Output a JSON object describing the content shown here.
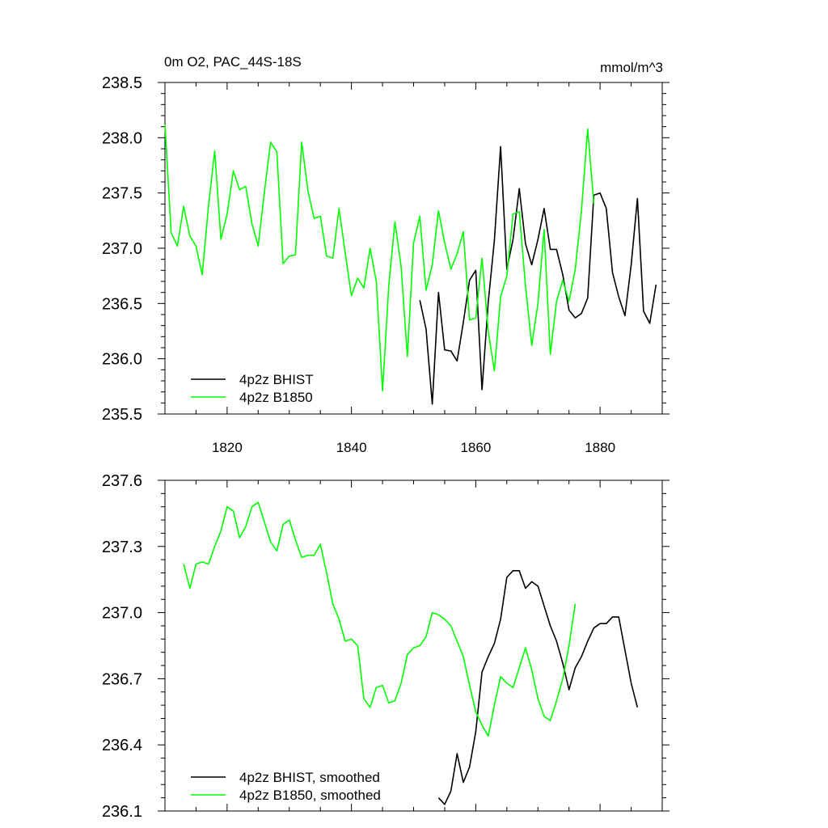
{
  "chart_data": [
    {
      "type": "line",
      "title_left": "0m O2, PAC_44S-18S",
      "title_right": "mmol/m^3",
      "xlim": [
        1810,
        1890
      ],
      "ylim": [
        235.5,
        238.5
      ],
      "x_ticks": [
        1820,
        1840,
        1860,
        1880
      ],
      "x_tick_labels": [
        "1820",
        "1840",
        "1860",
        "1880"
      ],
      "y_ticks": [
        235.5,
        236.0,
        236.5,
        237.0,
        237.5,
        238.0,
        238.5
      ],
      "y_tick_labels": [
        "235.5",
        "236.0",
        "236.5",
        "237.0",
        "237.5",
        "238.0",
        "238.5"
      ],
      "legend": [
        "4p2z BHIST",
        "4p2z B1850"
      ],
      "series": [
        {
          "name": "4p2z BHIST",
          "color": "#000000",
          "x": [
            1851,
            1852,
            1853,
            1854,
            1855,
            1856,
            1857,
            1858,
            1859,
            1860,
            1861,
            1862,
            1863,
            1864,
            1865,
            1866,
            1867,
            1868,
            1869,
            1870,
            1871,
            1872,
            1873,
            1874,
            1875,
            1876,
            1877,
            1878,
            1879,
            1880,
            1881,
            1882,
            1883,
            1884,
            1885,
            1886,
            1887,
            1888,
            1889
          ],
          "y": [
            236.53,
            236.27,
            235.59,
            236.6,
            236.08,
            236.07,
            235.98,
            236.33,
            236.71,
            236.8,
            235.72,
            236.51,
            237.07,
            237.92,
            236.81,
            237.08,
            237.54,
            237.04,
            236.85,
            237.08,
            237.36,
            236.99,
            236.99,
            236.76,
            236.44,
            236.37,
            236.41,
            236.55,
            237.48,
            237.5,
            237.36,
            236.78,
            236.56,
            236.39,
            236.85,
            237.45,
            236.43,
            236.32,
            236.67
          ]
        },
        {
          "name": "4p2z B1850",
          "color": "#00ff00",
          "x": [
            1810,
            1811,
            1812,
            1813,
            1814,
            1815,
            1816,
            1817,
            1818,
            1819,
            1820,
            1821,
            1822,
            1823,
            1824,
            1825,
            1826,
            1827,
            1828,
            1829,
            1830,
            1831,
            1832,
            1833,
            1834,
            1835,
            1836,
            1837,
            1838,
            1839,
            1840,
            1841,
            1842,
            1843,
            1844,
            1845,
            1846,
            1847,
            1848,
            1849,
            1850,
            1851,
            1852,
            1853,
            1854,
            1855,
            1856,
            1857,
            1858,
            1859,
            1860,
            1861,
            1862,
            1863,
            1864,
            1865,
            1866,
            1867,
            1868,
            1869,
            1870,
            1871,
            1872,
            1873,
            1874,
            1875,
            1876,
            1877,
            1878,
            1879
          ],
          "y": [
            238.12,
            237.14,
            237.02,
            237.38,
            237.11,
            237.02,
            236.76,
            237.38,
            237.88,
            237.08,
            237.31,
            237.7,
            237.53,
            237.56,
            237.22,
            237.02,
            237.51,
            237.96,
            237.87,
            236.86,
            236.93,
            236.94,
            237.96,
            237.52,
            237.27,
            237.29,
            236.93,
            236.91,
            237.36,
            236.96,
            236.57,
            236.73,
            236.64,
            237.0,
            236.7,
            235.71,
            236.66,
            237.24,
            236.83,
            236.02,
            237.05,
            237.29,
            236.62,
            236.85,
            237.34,
            237.05,
            236.81,
            236.95,
            237.15,
            236.35,
            236.37,
            236.91,
            236.25,
            235.89,
            236.56,
            236.75,
            237.31,
            237.33,
            236.66,
            236.12,
            236.5,
            237.17,
            236.04,
            236.52,
            236.71,
            236.52,
            236.81,
            237.34,
            238.08,
            237.4
          ]
        }
      ]
    },
    {
      "type": "line",
      "xlim": [
        1810,
        1890
      ],
      "ylim": [
        236.1,
        237.6
      ],
      "x_ticks": [
        1820,
        1840,
        1860,
        1880
      ],
      "y_ticks": [
        236.1,
        236.4,
        236.7,
        237.0,
        237.3,
        237.6
      ],
      "y_tick_labels": [
        "236.1",
        "236.4",
        "236.7",
        "237.0",
        "237.3",
        "237.6"
      ],
      "legend": [
        "4p2z BHIST, smoothed",
        "4p2z B1850, smoothed"
      ],
      "series": [
        {
          "name": "4p2z BHIST, smoothed",
          "color": "#000000",
          "x": [
            1854,
            1855,
            1856,
            1857,
            1858,
            1859,
            1860,
            1861,
            1862,
            1863,
            1864,
            1865,
            1866,
            1867,
            1868,
            1869,
            1870,
            1871,
            1872,
            1873,
            1874,
            1875,
            1876,
            1877,
            1878,
            1879,
            1880,
            1881,
            1882,
            1883,
            1884,
            1885,
            1886
          ],
          "y": [
            236.16,
            236.13,
            236.19,
            236.36,
            236.23,
            236.3,
            236.46,
            236.73,
            236.8,
            236.86,
            236.97,
            237.16,
            237.19,
            237.19,
            237.11,
            237.14,
            237.12,
            237.03,
            236.94,
            236.87,
            236.77,
            236.65,
            236.75,
            236.8,
            236.87,
            236.93,
            236.95,
            236.95,
            236.98,
            236.98,
            236.83,
            236.68,
            236.57
          ]
        },
        {
          "name": "4p2z B1850, smoothed",
          "color": "#00ff00",
          "x": [
            1813,
            1814,
            1815,
            1816,
            1817,
            1818,
            1819,
            1820,
            1821,
            1822,
            1823,
            1824,
            1825,
            1826,
            1827,
            1828,
            1829,
            1830,
            1831,
            1832,
            1833,
            1834,
            1835,
            1836,
            1837,
            1838,
            1839,
            1840,
            1841,
            1842,
            1843,
            1844,
            1845,
            1846,
            1847,
            1848,
            1849,
            1850,
            1851,
            1852,
            1853,
            1854,
            1855,
            1856,
            1857,
            1858,
            1859,
            1860,
            1861,
            1862,
            1863,
            1864,
            1865,
            1866,
            1867,
            1868,
            1869,
            1870,
            1871,
            1872,
            1873,
            1874,
            1875,
            1876
          ],
          "y": [
            237.22,
            237.11,
            237.22,
            237.23,
            237.22,
            237.3,
            237.37,
            237.48,
            237.46,
            237.34,
            237.39,
            237.48,
            237.5,
            237.41,
            237.32,
            237.28,
            237.4,
            237.42,
            237.33,
            237.25,
            237.26,
            237.26,
            237.31,
            237.18,
            237.04,
            236.97,
            236.87,
            236.88,
            236.85,
            236.61,
            236.57,
            236.66,
            236.67,
            236.59,
            236.6,
            236.68,
            236.81,
            236.84,
            236.85,
            236.89,
            237.0,
            236.99,
            236.97,
            236.94,
            236.87,
            236.8,
            236.67,
            236.55,
            236.49,
            236.44,
            236.58,
            236.71,
            236.68,
            236.66,
            236.75,
            236.84,
            236.74,
            236.61,
            236.53,
            236.51,
            236.6,
            236.7,
            236.85,
            237.04
          ]
        }
      ]
    }
  ]
}
